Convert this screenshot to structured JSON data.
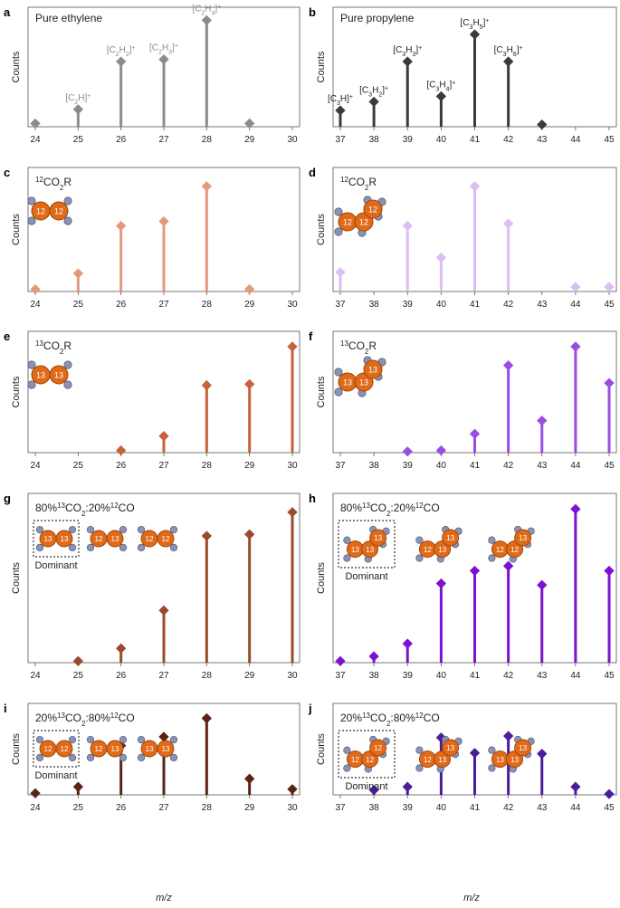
{
  "figure": {
    "x_axis_label": "m/z"
  },
  "chart_data": [
    {
      "type": "bar",
      "panel": "a",
      "title": "Pure ethylene",
      "ylabel": "Counts",
      "xlabel": "",
      "color": "#8c8c8c",
      "x": [
        24,
        25,
        26,
        27,
        28,
        29,
        30
      ],
      "values": [
        3,
        16,
        60,
        62,
        98,
        3,
        0
      ],
      "ylim": [
        0,
        100
      ],
      "annotations": [
        {
          "x": 25,
          "base": "[C",
          "sub": "2",
          "rest": "H]",
          "sup": "+"
        },
        {
          "x": 26,
          "base": "[C",
          "sub": "2",
          "rest": "H",
          "sub2": "2",
          "end": "]",
          "sup": "+"
        },
        {
          "x": 27,
          "base": "[C",
          "sub": "2",
          "rest": "H",
          "sub2": "3",
          "end": "]",
          "sup": "+"
        },
        {
          "x": 28,
          "base": "[C",
          "sub": "2",
          "rest": "H",
          "sub2": "4",
          "end": "]",
          "sup": "+"
        }
      ]
    },
    {
      "type": "bar",
      "panel": "b",
      "title": "Pure propylene",
      "ylabel": "Counts",
      "xlabel": "",
      "color": "#3a3a3a",
      "x": [
        37,
        38,
        39,
        40,
        41,
        42,
        43,
        44,
        45
      ],
      "values": [
        15,
        23,
        60,
        28,
        85,
        60,
        2,
        0,
        0
      ],
      "ylim": [
        0,
        100
      ],
      "annotations": [
        {
          "x": 37,
          "base": "[C",
          "sub": "3",
          "rest": "H]",
          "sup": "+"
        },
        {
          "x": 38,
          "base": "[C",
          "sub": "3",
          "rest": "H",
          "sub2": "2",
          "end": "]",
          "sup": "+"
        },
        {
          "x": 39,
          "base": "[C",
          "sub": "3",
          "rest": "H",
          "sub2": "3",
          "end": "]",
          "sup": "+"
        },
        {
          "x": 40,
          "base": "[C",
          "sub": "3",
          "rest": "H",
          "sub2": "4",
          "end": "]",
          "sup": "+"
        },
        {
          "x": 41,
          "base": "[C",
          "sub": "3",
          "rest": "H",
          "sub2": "5",
          "end": "]",
          "sup": "+"
        },
        {
          "x": 42,
          "base": "[C",
          "sub": "3",
          "rest": "H",
          "sub2": "6",
          "end": "]",
          "sup": "+"
        }
      ]
    },
    {
      "type": "bar",
      "panel": "c",
      "title": "12CO2R",
      "ylabel": "Counts",
      "xlabel": "",
      "color": "#e39a7c",
      "x": [
        24,
        25,
        26,
        27,
        28,
        29,
        30
      ],
      "values": [
        2,
        16,
        58,
        62,
        93,
        2,
        0
      ],
      "ylim": [
        0,
        100
      ]
    },
    {
      "type": "bar",
      "panel": "d",
      "title": "12CO2R",
      "ylabel": "Counts",
      "xlabel": "",
      "color": "#dcbdf5",
      "x": [
        37,
        38,
        39,
        40,
        41,
        42,
        43,
        44,
        45
      ],
      "values": [
        17,
        0,
        58,
        30,
        93,
        60,
        0,
        4,
        4
      ],
      "ylim": [
        0,
        100
      ],
      "hidden_marker": [
        38
      ]
    },
    {
      "type": "bar",
      "panel": "e",
      "title": "13CO2R",
      "ylabel": "Counts",
      "xlabel": "",
      "color": "#c8613e",
      "x": [
        24,
        25,
        26,
        27,
        28,
        29,
        30
      ],
      "values": [
        0,
        0,
        2,
        15,
        61,
        62,
        96
      ],
      "ylim": [
        0,
        100
      ]
    },
    {
      "type": "bar",
      "panel": "f",
      "title": "13CO2R",
      "ylabel": "Counts",
      "xlabel": "",
      "color": "#9b4de3",
      "x": [
        37,
        38,
        39,
        40,
        41,
        42,
        43,
        44,
        45
      ],
      "values": [
        0,
        0,
        1,
        2,
        17,
        79,
        29,
        96,
        63
      ],
      "ylim": [
        0,
        100
      ]
    },
    {
      "type": "bar",
      "panel": "g",
      "title": "80%13CO2:20%12CO",
      "ylabel": "Counts",
      "xlabel": "",
      "color": "#9b4a2c",
      "x": [
        24,
        25,
        26,
        27,
        28,
        29,
        30
      ],
      "values": [
        0,
        1,
        9,
        33,
        80,
        81,
        95
      ],
      "ylim": [
        0,
        100
      ],
      "dominant_label": "Dominant"
    },
    {
      "type": "bar",
      "panel": "h",
      "title": "80%13CO2:20%12CO",
      "ylabel": "Counts",
      "xlabel": "",
      "color": "#7c12cf",
      "x": [
        37,
        38,
        39,
        40,
        41,
        42,
        43,
        44,
        45
      ],
      "values": [
        1,
        4,
        12,
        50,
        58,
        61,
        49,
        97,
        58
      ],
      "ylim": [
        0,
        100
      ],
      "dominant_label": "Dominant"
    },
    {
      "type": "bar",
      "panel": "i",
      "title": "20%13CO2:80%12CO",
      "ylabel": "Counts",
      "xlabel": "",
      "color": "#5a2415",
      "x": [
        24,
        25,
        26,
        27,
        28,
        29,
        30
      ],
      "values": [
        2,
        10,
        61,
        72,
        95,
        20,
        7
      ],
      "ylim": [
        0,
        100
      ],
      "dominant_label": "Dominant"
    },
    {
      "type": "bar",
      "panel": "j",
      "title": "20%13CO2:80%12CO",
      "ylabel": "Counts",
      "xlabel": "",
      "color": "#4a1d9a",
      "x": [
        37,
        38,
        39,
        40,
        41,
        42,
        43,
        44,
        45
      ],
      "values": [
        0,
        6,
        10,
        71,
        52,
        73,
        51,
        10,
        1
      ],
      "ylim": [
        0,
        100
      ],
      "dominant_label": "Dominant"
    }
  ]
}
